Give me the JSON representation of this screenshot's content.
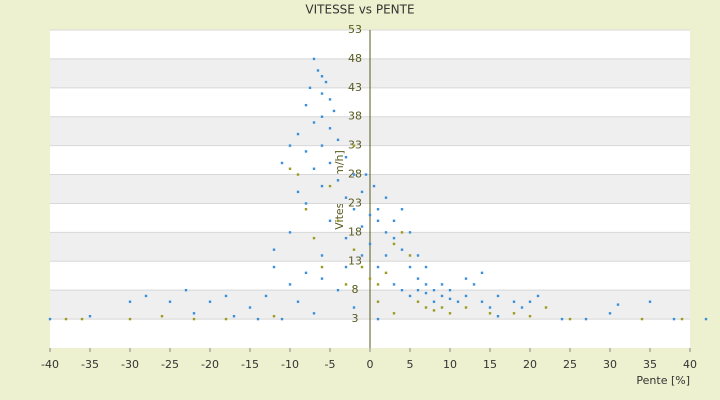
{
  "chart_data": {
    "type": "scatter",
    "title": "VITESSE vs PENTE",
    "xlabel": "Pente [%]",
    "ylabel": "Vitesse [km/h]",
    "xlim": [
      -40,
      40
    ],
    "ylim": [
      -2,
      53
    ],
    "xticks": [
      -40,
      -35,
      -30,
      -25,
      -20,
      -15,
      -10,
      -5,
      0,
      5,
      10,
      15,
      20,
      25,
      30,
      35,
      40
    ],
    "yticks": [
      3,
      8,
      13,
      18,
      23,
      28,
      33,
      38,
      43,
      48,
      53
    ],
    "series": [
      {
        "color": "#3a8fd9",
        "x": [
          -7,
          -6.5,
          -6,
          -5.5,
          -7.5,
          -6,
          -5,
          -8,
          -4.5,
          -6,
          -7,
          -5,
          -9,
          -4,
          -6,
          -8,
          -3,
          -5,
          -7,
          -2,
          -4,
          -6,
          -1,
          -3,
          -8,
          -2,
          0,
          -5,
          1,
          -1,
          2,
          -3,
          0,
          1,
          2,
          0.5,
          -0.5,
          3,
          4,
          2,
          5,
          -6,
          -8,
          -10,
          -9,
          -7,
          -11,
          -10,
          -12,
          -9,
          -11,
          -10,
          -6,
          -4,
          -2,
          1,
          3,
          4,
          5,
          6,
          7,
          8,
          9,
          10,
          11,
          12,
          13,
          14,
          15,
          16,
          18,
          19,
          20,
          21,
          6,
          7,
          8,
          9,
          10,
          12,
          14,
          16,
          24,
          27,
          30,
          31,
          35,
          38,
          42,
          -40,
          -35,
          -30,
          -28,
          -25,
          -23,
          -20,
          -18,
          -15,
          -13,
          -12,
          -14,
          -17,
          -22,
          -3,
          -1,
          1,
          3,
          4,
          5,
          6,
          7
        ],
        "values": [
          48,
          46,
          45,
          44,
          43,
          42,
          41,
          40,
          39,
          38,
          37,
          36,
          35,
          34,
          33,
          32,
          31,
          30,
          29,
          28,
          27,
          26,
          25,
          24,
          23,
          22,
          21,
          20,
          20,
          19,
          18,
          17,
          16,
          22,
          24,
          26,
          28,
          17,
          15,
          14,
          12,
          14,
          11,
          9,
          6,
          4,
          3,
          18,
          15,
          25,
          30,
          33,
          10,
          8,
          5,
          3,
          9,
          8,
          7,
          8,
          7.5,
          8,
          7,
          8,
          6,
          7,
          9,
          6,
          5,
          7,
          6,
          5,
          6,
          7,
          10,
          9,
          6,
          9,
          6.5,
          10,
          11,
          3.5,
          3,
          3,
          4,
          5.5,
          6,
          3,
          3,
          3,
          3.5,
          6,
          7,
          6,
          8,
          6,
          7,
          5,
          7,
          12,
          3,
          3.5,
          4,
          12,
          14,
          12,
          20,
          22,
          18,
          14,
          12
        ]
      },
      {
        "color": "#9a9a1e",
        "x": [
          -38,
          -36,
          -30,
          -26,
          -22,
          -18,
          -12,
          -9,
          -8,
          -10,
          -5,
          -4,
          -2,
          -1,
          0,
          1,
          2,
          3,
          4,
          5,
          6,
          7,
          8,
          9,
          10,
          12,
          15,
          18,
          20,
          22,
          25,
          34,
          39,
          -6,
          -3,
          1,
          3,
          -7,
          -2
        ],
        "values": [
          3,
          3,
          3,
          3.5,
          3,
          3,
          3.5,
          28,
          22,
          29,
          26,
          20,
          15,
          12,
          10,
          9,
          11,
          16,
          18,
          14,
          6,
          5,
          4.5,
          5,
          4,
          5,
          4,
          4,
          3.5,
          5,
          3,
          3,
          3,
          12,
          9,
          6,
          4,
          17,
          33
        ]
      }
    ]
  }
}
